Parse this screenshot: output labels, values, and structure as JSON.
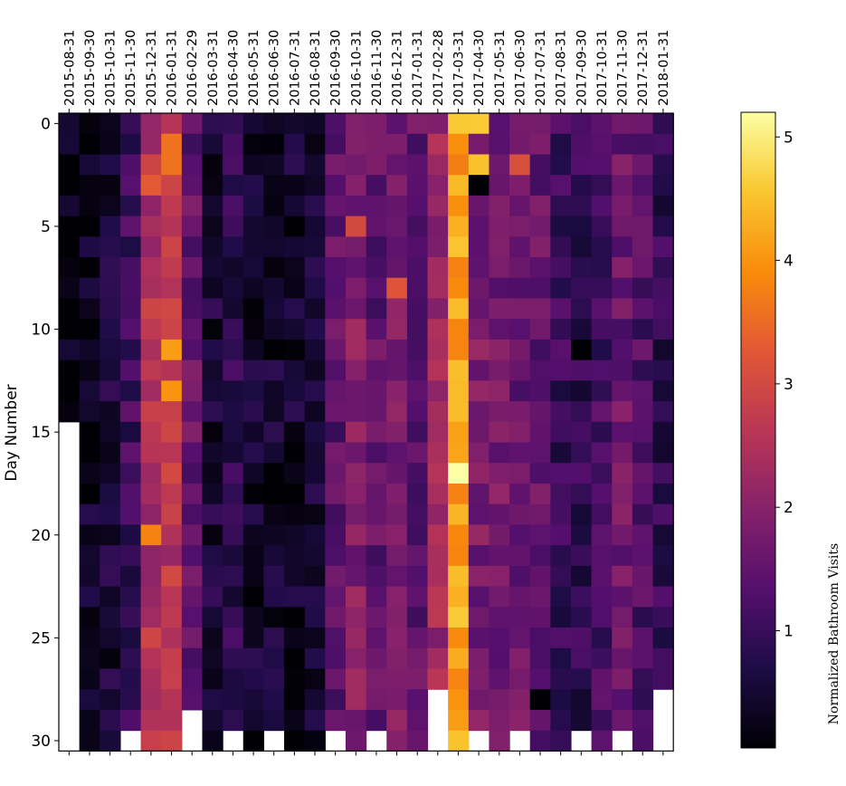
{
  "chart_data": {
    "type": "heatmap",
    "title": "",
    "ylabel": "Day Number",
    "colorbar_label": "Normalized Bathroom Visits",
    "colormap": "inferno",
    "vmin": 0.05,
    "vmax": 5.2,
    "colorbar_ticks": [
      1,
      2,
      3,
      4,
      5
    ],
    "y_ticks": [
      0,
      5,
      10,
      15,
      20,
      25,
      30
    ],
    "columns": [
      "2015-08-31",
      "2015-09-30",
      "2015-10-31",
      "2015-11-30",
      "2015-12-31",
      "2016-01-31",
      "2016-02-29",
      "2016-03-31",
      "2016-04-30",
      "2016-05-31",
      "2016-06-30",
      "2016-07-31",
      "2016-08-31",
      "2016-09-30",
      "2016-10-31",
      "2016-11-30",
      "2016-12-31",
      "2017-01-31",
      "2017-02-28",
      "2017-03-31",
      "2017-04-30",
      "2017-05-31",
      "2017-06-30",
      "2017-07-31",
      "2017-08-31",
      "2017-09-30",
      "2017-10-31",
      "2017-11-30",
      "2017-12-31",
      "2018-01-31"
    ],
    "days_per_column": [
      15,
      31,
      31,
      30,
      31,
      31,
      29,
      31,
      30,
      31,
      30,
      31,
      31,
      30,
      31,
      30,
      31,
      31,
      28,
      31,
      30,
      31,
      30,
      31,
      31,
      30,
      31,
      30,
      31,
      28
    ],
    "column_base_values": [
      0.15,
      0.35,
      0.55,
      1.05,
      2.5,
      2.6,
      1.5,
      0.55,
      0.85,
      0.5,
      0.45,
      0.45,
      0.6,
      1.4,
      1.9,
      1.45,
      1.75,
      1.5,
      2.25,
      4.2,
      1.8,
      1.7,
      1.6,
      1.5,
      1.0,
      0.9,
      1.1,
      1.6,
      1.25,
      0.9
    ],
    "cells": [
      {
        "col": 4,
        "day": 3,
        "value": 3.3
      },
      {
        "col": 5,
        "day": 1,
        "value": 3.6
      },
      {
        "col": 5,
        "day": 2,
        "value": 3.6
      },
      {
        "col": 5,
        "day": 11,
        "value": 4.1
      },
      {
        "col": 5,
        "day": 13,
        "value": 4.0
      },
      {
        "col": 4,
        "day": 20,
        "value": 3.8
      },
      {
        "col": 19,
        "day": 17,
        "value": 5.2
      },
      {
        "col": 20,
        "day": 0,
        "value": 4.6
      },
      {
        "col": 20,
        "day": 2,
        "value": 4.5
      },
      {
        "col": 20,
        "day": 3,
        "value": 0.05
      },
      {
        "col": 22,
        "day": 2,
        "value": 3.1
      },
      {
        "col": 16,
        "day": 8,
        "value": 3.2
      },
      {
        "col": 14,
        "day": 5,
        "value": 3.0
      },
      {
        "col": 25,
        "day": 11,
        "value": 0.05
      },
      {
        "col": 23,
        "day": 28,
        "value": 0.05
      }
    ]
  }
}
